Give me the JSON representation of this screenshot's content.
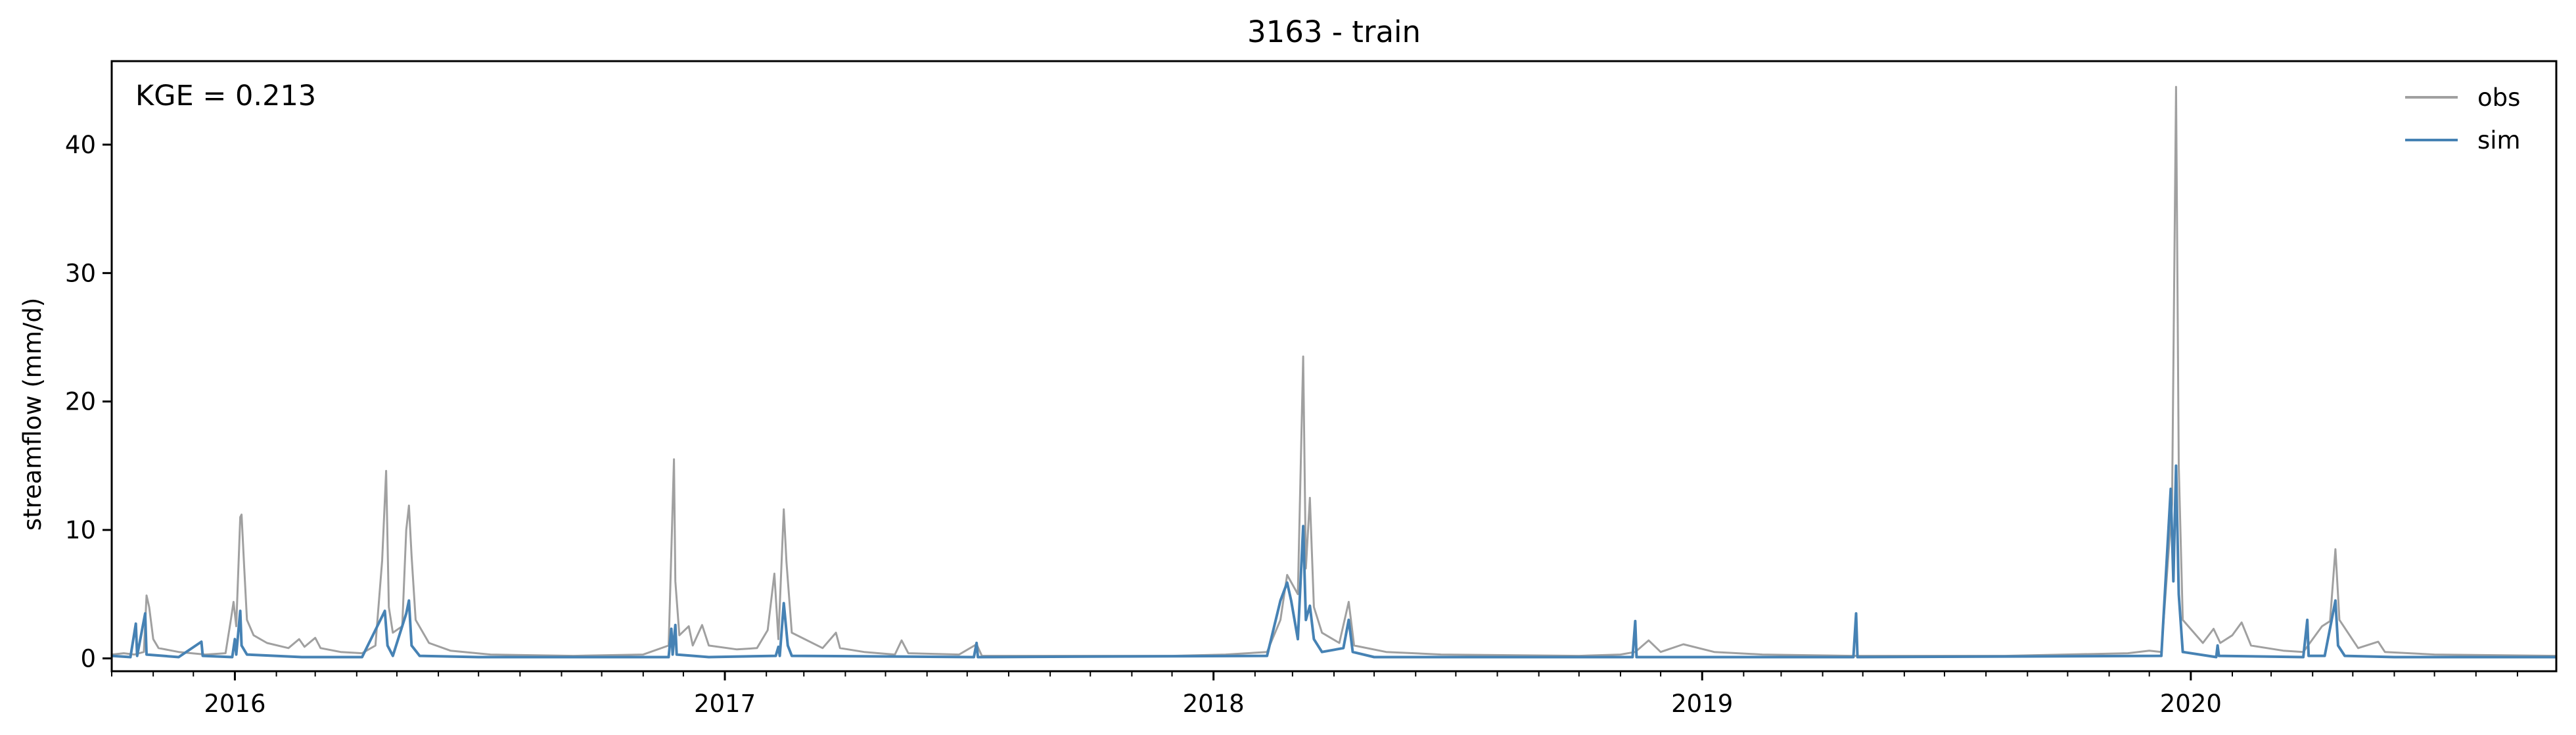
{
  "chart_data": {
    "type": "line",
    "title": "3163 - train",
    "xlabel": "",
    "ylabel": "streamflow (mm/d)",
    "annotation": "KGE = 0.213",
    "x_range": [
      "2015-10-01",
      "2020-09-30"
    ],
    "ylim": [
      -1,
      46.5
    ],
    "y_ticks": [
      0,
      10,
      20,
      30,
      40
    ],
    "x_ticks": [
      {
        "date": "2016-01-01",
        "label": "2016"
      },
      {
        "date": "2017-01-01",
        "label": "2017"
      },
      {
        "date": "2018-01-01",
        "label": "2018"
      },
      {
        "date": "2019-01-01",
        "label": "2019"
      },
      {
        "date": "2020-01-01",
        "label": "2020"
      }
    ],
    "grid": false,
    "legend_position": "top-right",
    "series": [
      {
        "name": "obs",
        "color": "#a0a0a0",
        "points": [
          [
            "2015-10-01",
            0.3
          ],
          [
            "2015-10-10",
            0.4
          ],
          [
            "2015-10-18",
            0.3
          ],
          [
            "2015-10-25",
            0.5
          ],
          [
            "2015-10-27",
            4.9
          ],
          [
            "2015-10-29",
            4.0
          ],
          [
            "2015-11-01",
            1.5
          ],
          [
            "2015-11-05",
            0.8
          ],
          [
            "2015-11-20",
            0.5
          ],
          [
            "2015-12-10",
            0.3
          ],
          [
            "2015-12-25",
            0.4
          ],
          [
            "2015-12-29",
            3.0
          ],
          [
            "2015-12-31",
            4.4
          ],
          [
            "2016-01-02",
            2.5
          ],
          [
            "2016-01-05",
            11.0
          ],
          [
            "2016-01-06",
            11.2
          ],
          [
            "2016-01-08",
            7.0
          ],
          [
            "2016-01-10",
            3.0
          ],
          [
            "2016-01-15",
            1.8
          ],
          [
            "2016-01-25",
            1.2
          ],
          [
            "2016-02-10",
            0.8
          ],
          [
            "2016-02-18",
            1.5
          ],
          [
            "2016-02-22",
            0.9
          ],
          [
            "2016-03-01",
            1.6
          ],
          [
            "2016-03-05",
            0.8
          ],
          [
            "2016-03-20",
            0.5
          ],
          [
            "2016-04-05",
            0.4
          ],
          [
            "2016-04-15",
            1.0
          ],
          [
            "2016-04-20",
            7.6
          ],
          [
            "2016-04-23",
            14.6
          ],
          [
            "2016-04-25",
            4.0
          ],
          [
            "2016-04-28",
            2.0
          ],
          [
            "2016-05-05",
            2.5
          ],
          [
            "2016-05-08",
            10.0
          ],
          [
            "2016-05-10",
            11.9
          ],
          [
            "2016-05-12",
            8.0
          ],
          [
            "2016-05-15",
            3.0
          ],
          [
            "2016-05-25",
            1.2
          ],
          [
            "2016-06-10",
            0.6
          ],
          [
            "2016-07-10",
            0.3
          ],
          [
            "2016-09-10",
            0.2
          ],
          [
            "2016-11-01",
            0.3
          ],
          [
            "2016-11-20",
            1.0
          ],
          [
            "2016-11-24",
            15.5
          ],
          [
            "2016-11-25",
            6.0
          ],
          [
            "2016-11-28",
            1.8
          ],
          [
            "2016-12-05",
            2.5
          ],
          [
            "2016-12-08",
            1.0
          ],
          [
            "2016-12-15",
            2.6
          ],
          [
            "2016-12-20",
            1.0
          ],
          [
            "2017-01-10",
            0.7
          ],
          [
            "2017-01-25",
            0.8
          ],
          [
            "2017-02-02",
            2.2
          ],
          [
            "2017-02-07",
            6.6
          ],
          [
            "2017-02-10",
            1.5
          ],
          [
            "2017-02-14",
            11.6
          ],
          [
            "2017-02-16",
            7.5
          ],
          [
            "2017-02-20",
            2.0
          ],
          [
            "2017-03-15",
            0.8
          ],
          [
            "2017-03-25",
            2.0
          ],
          [
            "2017-03-28",
            0.8
          ],
          [
            "2017-04-15",
            0.5
          ],
          [
            "2017-05-08",
            0.3
          ],
          [
            "2017-05-13",
            1.4
          ],
          [
            "2017-05-18",
            0.4
          ],
          [
            "2017-06-25",
            0.3
          ],
          [
            "2017-07-08",
            1.1
          ],
          [
            "2017-07-12",
            0.2
          ],
          [
            "2017-09-01",
            0.2
          ],
          [
            "2017-12-01",
            0.2
          ],
          [
            "2018-01-10",
            0.3
          ],
          [
            "2018-02-10",
            0.5
          ],
          [
            "2018-02-20",
            3.0
          ],
          [
            "2018-02-25",
            6.5
          ],
          [
            "2018-03-05",
            5.0
          ],
          [
            "2018-03-09",
            23.5
          ],
          [
            "2018-03-11",
            7.0
          ],
          [
            "2018-03-14",
            12.5
          ],
          [
            "2018-03-17",
            4.0
          ],
          [
            "2018-03-23",
            2.0
          ],
          [
            "2018-04-05",
            1.2
          ],
          [
            "2018-04-12",
            4.4
          ],
          [
            "2018-04-16",
            1.0
          ],
          [
            "2018-05-10",
            0.5
          ],
          [
            "2018-06-20",
            0.3
          ],
          [
            "2018-10-01",
            0.2
          ],
          [
            "2018-11-01",
            0.3
          ],
          [
            "2018-11-12",
            0.5
          ],
          [
            "2018-11-22",
            1.4
          ],
          [
            "2018-12-01",
            0.5
          ],
          [
            "2018-12-18",
            1.1
          ],
          [
            "2019-01-10",
            0.5
          ],
          [
            "2019-02-15",
            0.3
          ],
          [
            "2019-04-23",
            0.2
          ],
          [
            "2019-08-15",
            0.2
          ],
          [
            "2019-11-15",
            0.4
          ],
          [
            "2019-12-01",
            0.6
          ],
          [
            "2019-12-10",
            0.5
          ],
          [
            "2019-12-18",
            12.0
          ],
          [
            "2019-12-21",
            44.5
          ],
          [
            "2019-12-23",
            15.0
          ],
          [
            "2019-12-26",
            3.0
          ],
          [
            "2020-01-10",
            1.2
          ],
          [
            "2020-01-18",
            2.3
          ],
          [
            "2020-01-23",
            1.2
          ],
          [
            "2020-02-01",
            1.8
          ],
          [
            "2020-02-08",
            2.8
          ],
          [
            "2020-02-15",
            1.0
          ],
          [
            "2020-03-10",
            0.6
          ],
          [
            "2020-03-25",
            0.5
          ],
          [
            "2020-04-08",
            2.5
          ],
          [
            "2020-04-14",
            2.9
          ],
          [
            "2020-04-18",
            8.5
          ],
          [
            "2020-04-21",
            3.0
          ],
          [
            "2020-05-05",
            0.8
          ],
          [
            "2020-05-20",
            1.3
          ],
          [
            "2020-05-25",
            0.5
          ],
          [
            "2020-07-01",
            0.3
          ],
          [
            "2020-09-30",
            0.2
          ]
        ]
      },
      {
        "name": "sim",
        "color": "#4682b4",
        "points": [
          [
            "2015-10-01",
            0.2
          ],
          [
            "2015-10-15",
            0.1
          ],
          [
            "2015-10-19",
            2.7
          ],
          [
            "2015-10-20",
            0.2
          ],
          [
            "2015-10-26",
            3.5
          ],
          [
            "2015-10-27",
            0.3
          ],
          [
            "2015-11-20",
            0.1
          ],
          [
            "2015-12-07",
            1.3
          ],
          [
            "2015-12-08",
            0.2
          ],
          [
            "2015-12-30",
            0.1
          ],
          [
            "2016-01-01",
            1.5
          ],
          [
            "2016-01-02",
            0.3
          ],
          [
            "2016-01-05",
            3.7
          ],
          [
            "2016-01-06",
            1.0
          ],
          [
            "2016-01-10",
            0.3
          ],
          [
            "2016-02-20",
            0.1
          ],
          [
            "2016-04-05",
            0.1
          ],
          [
            "2016-04-22",
            3.7
          ],
          [
            "2016-04-24",
            1.0
          ],
          [
            "2016-04-28",
            0.2
          ],
          [
            "2016-05-08",
            3.5
          ],
          [
            "2016-05-10",
            4.5
          ],
          [
            "2016-05-12",
            1.0
          ],
          [
            "2016-05-18",
            0.2
          ],
          [
            "2016-07-01",
            0.1
          ],
          [
            "2016-11-20",
            0.1
          ],
          [
            "2016-11-22",
            2.3
          ],
          [
            "2016-11-23",
            0.3
          ],
          [
            "2016-11-25",
            2.6
          ],
          [
            "2016-11-26",
            0.3
          ],
          [
            "2016-12-20",
            0.1
          ],
          [
            "2017-02-08",
            0.2
          ],
          [
            "2017-02-10",
            0.9
          ],
          [
            "2017-02-11",
            0.2
          ],
          [
            "2017-02-14",
            4.3
          ],
          [
            "2017-02-17",
            1.0
          ],
          [
            "2017-02-20",
            0.2
          ],
          [
            "2017-07-06",
            0.1
          ],
          [
            "2017-07-08",
            1.2
          ],
          [
            "2017-07-09",
            0.1
          ],
          [
            "2018-02-10",
            0.2
          ],
          [
            "2018-02-20",
            4.5
          ],
          [
            "2018-02-25",
            5.9
          ],
          [
            "2018-02-28",
            4.5
          ],
          [
            "2018-03-05",
            1.5
          ],
          [
            "2018-03-09",
            10.3
          ],
          [
            "2018-03-11",
            3.0
          ],
          [
            "2018-03-14",
            4.1
          ],
          [
            "2018-03-17",
            1.5
          ],
          [
            "2018-03-23",
            0.5
          ],
          [
            "2018-04-08",
            0.8
          ],
          [
            "2018-04-12",
            3.0
          ],
          [
            "2018-04-15",
            0.5
          ],
          [
            "2018-05-01",
            0.1
          ],
          [
            "2018-11-10",
            0.1
          ],
          [
            "2018-11-12",
            2.9
          ],
          [
            "2018-11-13",
            0.1
          ],
          [
            "2019-04-24",
            0.1
          ],
          [
            "2019-04-26",
            3.5
          ],
          [
            "2019-04-27",
            0.1
          ],
          [
            "2019-12-10",
            0.2
          ],
          [
            "2019-12-17",
            13.2
          ],
          [
            "2019-12-19",
            6.0
          ],
          [
            "2019-12-21",
            15.0
          ],
          [
            "2019-12-23",
            5.0
          ],
          [
            "2019-12-26",
            0.5
          ],
          [
            "2020-01-20",
            0.1
          ],
          [
            "2020-01-21",
            1.0
          ],
          [
            "2020-01-22",
            0.2
          ],
          [
            "2020-03-25",
            0.1
          ],
          [
            "2020-03-28",
            3.0
          ],
          [
            "2020-03-29",
            0.2
          ],
          [
            "2020-04-10",
            0.2
          ],
          [
            "2020-04-18",
            4.5
          ],
          [
            "2020-04-20",
            1.0
          ],
          [
            "2020-04-25",
            0.2
          ],
          [
            "2020-06-01",
            0.1
          ],
          [
            "2020-09-30",
            0.1
          ]
        ]
      }
    ]
  }
}
